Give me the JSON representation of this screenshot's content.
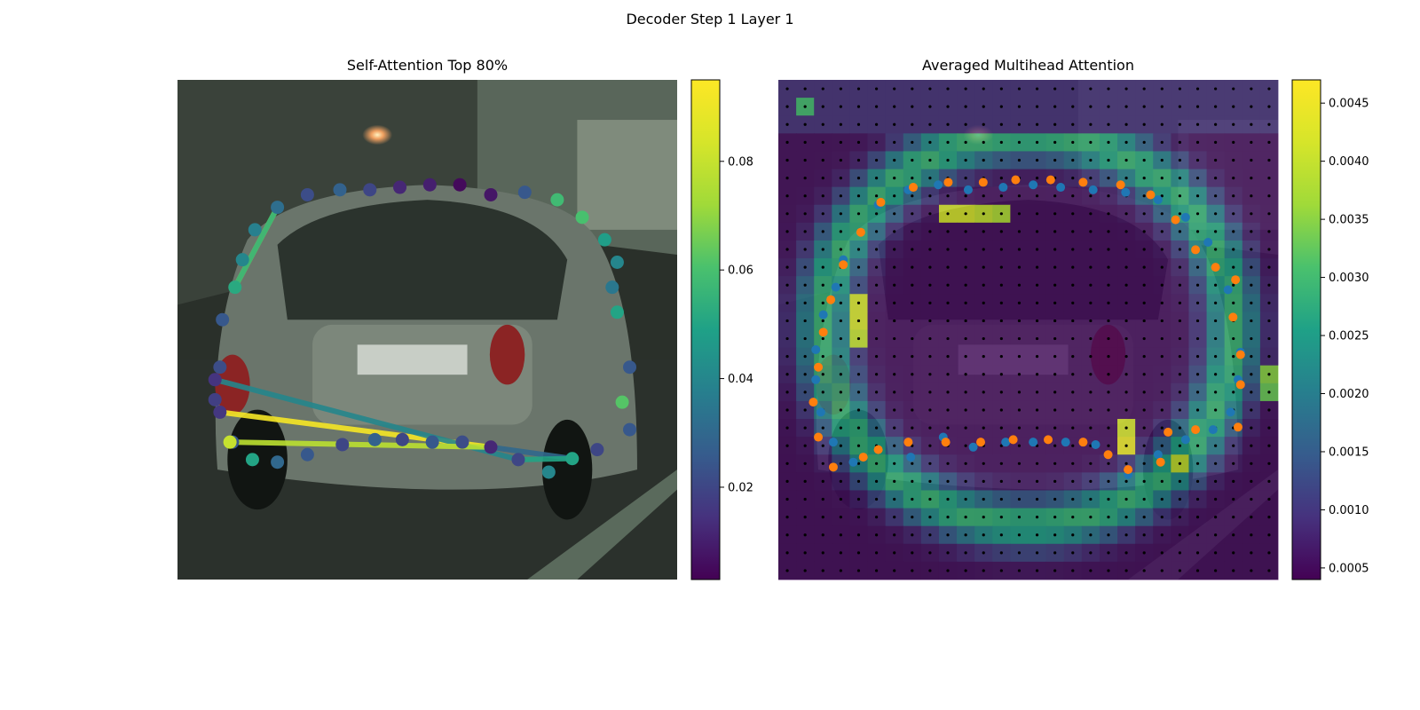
{
  "figure_title": "Decoder Step 1 Layer 1",
  "colors": {
    "blue_points": "#1f77b4",
    "orange_points": "#ff7f0e",
    "black_grid_points": "#000000"
  },
  "chart_data": [
    {
      "type": "scatter",
      "title": "Self-Attention Top 80%",
      "background": "street photo of a silver hatchback (rear view)",
      "colorbar": {
        "colormap": "viridis",
        "range": [
          0.003,
          0.095
        ],
        "ticks": [
          "0.02",
          "0.04",
          "0.06",
          "0.08"
        ],
        "tick_values": [
          0.02,
          0.04,
          0.06,
          0.08
        ]
      },
      "points": [
        {
          "x": 0.085,
          "y": 0.575,
          "v": 0.022
        },
        {
          "x": 0.075,
          "y": 0.64,
          "v": 0.018
        },
        {
          "x": 0.075,
          "y": 0.6,
          "v": 0.015
        },
        {
          "x": 0.085,
          "y": 0.665,
          "v": 0.016
        },
        {
          "x": 0.11,
          "y": 0.725,
          "v": 0.025
        },
        {
          "x": 0.15,
          "y": 0.76,
          "v": 0.05
        },
        {
          "x": 0.2,
          "y": 0.765,
          "v": 0.03
        },
        {
          "x": 0.26,
          "y": 0.75,
          "v": 0.025
        },
        {
          "x": 0.33,
          "y": 0.73,
          "v": 0.02
        },
        {
          "x": 0.395,
          "y": 0.72,
          "v": 0.028
        },
        {
          "x": 0.45,
          "y": 0.72,
          "v": 0.02
        },
        {
          "x": 0.51,
          "y": 0.725,
          "v": 0.025
        },
        {
          "x": 0.57,
          "y": 0.725,
          "v": 0.022
        },
        {
          "x": 0.627,
          "y": 0.735,
          "v": 0.012
        },
        {
          "x": 0.682,
          "y": 0.76,
          "v": 0.02
        },
        {
          "x": 0.743,
          "y": 0.785,
          "v": 0.04
        },
        {
          "x": 0.79,
          "y": 0.758,
          "v": 0.05
        },
        {
          "x": 0.84,
          "y": 0.74,
          "v": 0.02
        },
        {
          "x": 0.905,
          "y": 0.7,
          "v": 0.025
        },
        {
          "x": 0.89,
          "y": 0.645,
          "v": 0.062
        },
        {
          "x": 0.905,
          "y": 0.575,
          "v": 0.025
        },
        {
          "x": 0.88,
          "y": 0.465,
          "v": 0.05
        },
        {
          "x": 0.87,
          "y": 0.415,
          "v": 0.035
        },
        {
          "x": 0.88,
          "y": 0.365,
          "v": 0.04
        },
        {
          "x": 0.855,
          "y": 0.32,
          "v": 0.048
        },
        {
          "x": 0.81,
          "y": 0.275,
          "v": 0.06
        },
        {
          "x": 0.76,
          "y": 0.24,
          "v": 0.058
        },
        {
          "x": 0.695,
          "y": 0.225,
          "v": 0.025
        },
        {
          "x": 0.627,
          "y": 0.23,
          "v": 0.008
        },
        {
          "x": 0.565,
          "y": 0.21,
          "v": 0.005
        },
        {
          "x": 0.505,
          "y": 0.21,
          "v": 0.01
        },
        {
          "x": 0.445,
          "y": 0.215,
          "v": 0.012
        },
        {
          "x": 0.385,
          "y": 0.22,
          "v": 0.02
        },
        {
          "x": 0.325,
          "y": 0.22,
          "v": 0.028
        },
        {
          "x": 0.26,
          "y": 0.23,
          "v": 0.022
        },
        {
          "x": 0.2,
          "y": 0.255,
          "v": 0.032
        },
        {
          "x": 0.155,
          "y": 0.3,
          "v": 0.038
        },
        {
          "x": 0.13,
          "y": 0.36,
          "v": 0.04
        },
        {
          "x": 0.115,
          "y": 0.415,
          "v": 0.052
        },
        {
          "x": 0.09,
          "y": 0.48,
          "v": 0.025
        },
        {
          "x": 0.105,
          "y": 0.725,
          "v": 0.08
        }
      ],
      "lines": [
        {
          "from": [
            0.2,
            0.255
          ],
          "to": [
            0.115,
            0.415
          ],
          "v": 0.08
        },
        {
          "from": [
            0.2,
            0.255
          ],
          "to": [
            0.115,
            0.415
          ],
          "v": 0.055
        },
        {
          "from": [
            0.085,
            0.665
          ],
          "to": [
            0.627,
            0.735
          ],
          "v": 0.093
        },
        {
          "from": [
            0.075,
            0.6
          ],
          "to": [
            0.682,
            0.76
          ],
          "v": 0.04
        },
        {
          "from": [
            0.105,
            0.725
          ],
          "to": [
            0.627,
            0.735
          ],
          "v": 0.078
        },
        {
          "from": [
            0.627,
            0.735
          ],
          "to": [
            0.79,
            0.758
          ],
          "v": 0.03
        },
        {
          "from": [
            0.682,
            0.76
          ],
          "to": [
            0.79,
            0.758
          ],
          "v": 0.05
        }
      ]
    },
    {
      "type": "heatmap",
      "title": "Averaged Multihead Attention",
      "background": "same street photo, darkened",
      "colorbar": {
        "colormap": "viridis",
        "range": [
          0.0004,
          0.0047
        ],
        "ticks": [
          "0.0005",
          "0.0010",
          "0.0015",
          "0.0020",
          "0.0025",
          "0.0030",
          "0.0035",
          "0.0040",
          "0.0045"
        ],
        "tick_values": [
          0.0005,
          0.001,
          0.0015,
          0.002,
          0.0025,
          0.003,
          0.0035,
          0.004,
          0.0045
        ]
      },
      "grid": {
        "cols": 28,
        "rows": 28
      },
      "ring": {
        "cx": 0.5,
        "cy": 0.5,
        "rx": 0.41,
        "ry": 0.39
      },
      "hotspots": [
        {
          "c": 9,
          "r": 7,
          "v": 0.0042
        },
        {
          "c": 10,
          "r": 7,
          "v": 0.0042
        },
        {
          "c": 11,
          "r": 7,
          "v": 0.004
        },
        {
          "c": 12,
          "r": 7,
          "v": 0.0038
        },
        {
          "c": 4,
          "r": 12,
          "v": 0.0042
        },
        {
          "c": 4,
          "r": 13,
          "v": 0.0042
        },
        {
          "c": 4,
          "r": 14,
          "v": 0.004
        },
        {
          "c": 19,
          "r": 20,
          "v": 0.0045
        },
        {
          "c": 19,
          "r": 19,
          "v": 0.0042
        },
        {
          "c": 22,
          "r": 21,
          "v": 0.004
        },
        {
          "c": 1,
          "r": 1,
          "v": 0.003
        },
        {
          "c": 27,
          "r": 16,
          "v": 0.0035
        },
        {
          "c": 27,
          "r": 17,
          "v": 0.0033
        }
      ],
      "blue_points": [
        {
          "x": 0.2,
          "y": 0.25
        },
        {
          "x": 0.26,
          "y": 0.22
        },
        {
          "x": 0.32,
          "y": 0.21
        },
        {
          "x": 0.38,
          "y": 0.22
        },
        {
          "x": 0.45,
          "y": 0.215
        },
        {
          "x": 0.51,
          "y": 0.21
        },
        {
          "x": 0.565,
          "y": 0.215
        },
        {
          "x": 0.63,
          "y": 0.22
        },
        {
          "x": 0.695,
          "y": 0.225
        },
        {
          "x": 0.76,
          "y": 0.24
        },
        {
          "x": 0.815,
          "y": 0.275
        },
        {
          "x": 0.86,
          "y": 0.325
        },
        {
          "x": 0.9,
          "y": 0.42
        },
        {
          "x": 0.925,
          "y": 0.545
        },
        {
          "x": 0.92,
          "y": 0.6
        },
        {
          "x": 0.905,
          "y": 0.665
        },
        {
          "x": 0.87,
          "y": 0.7
        },
        {
          "x": 0.815,
          "y": 0.72
        },
        {
          "x": 0.76,
          "y": 0.75
        },
        {
          "x": 0.7,
          "y": 0.79
        },
        {
          "x": 0.635,
          "y": 0.73
        },
        {
          "x": 0.575,
          "y": 0.725
        },
        {
          "x": 0.51,
          "y": 0.725
        },
        {
          "x": 0.455,
          "y": 0.725
        },
        {
          "x": 0.39,
          "y": 0.735
        },
        {
          "x": 0.33,
          "y": 0.715
        },
        {
          "x": 0.265,
          "y": 0.755
        },
        {
          "x": 0.15,
          "y": 0.765
        },
        {
          "x": 0.11,
          "y": 0.725
        },
        {
          "x": 0.085,
          "y": 0.665
        },
        {
          "x": 0.075,
          "y": 0.6
        },
        {
          "x": 0.075,
          "y": 0.54
        },
        {
          "x": 0.09,
          "y": 0.47
        },
        {
          "x": 0.115,
          "y": 0.415
        },
        {
          "x": 0.13,
          "y": 0.36
        }
      ],
      "orange_points": [
        {
          "x": 0.205,
          "y": 0.245
        },
        {
          "x": 0.27,
          "y": 0.215
        },
        {
          "x": 0.34,
          "y": 0.205
        },
        {
          "x": 0.41,
          "y": 0.205
        },
        {
          "x": 0.475,
          "y": 0.2
        },
        {
          "x": 0.545,
          "y": 0.2
        },
        {
          "x": 0.61,
          "y": 0.205
        },
        {
          "x": 0.685,
          "y": 0.21
        },
        {
          "x": 0.745,
          "y": 0.23
        },
        {
          "x": 0.795,
          "y": 0.28
        },
        {
          "x": 0.835,
          "y": 0.34
        },
        {
          "x": 0.875,
          "y": 0.375
        },
        {
          "x": 0.915,
          "y": 0.4
        },
        {
          "x": 0.91,
          "y": 0.475
        },
        {
          "x": 0.925,
          "y": 0.55
        },
        {
          "x": 0.925,
          "y": 0.61
        },
        {
          "x": 0.92,
          "y": 0.695
        },
        {
          "x": 0.835,
          "y": 0.7
        },
        {
          "x": 0.78,
          "y": 0.705
        },
        {
          "x": 0.765,
          "y": 0.765
        },
        {
          "x": 0.7,
          "y": 0.78
        },
        {
          "x": 0.66,
          "y": 0.75
        },
        {
          "x": 0.61,
          "y": 0.725
        },
        {
          "x": 0.54,
          "y": 0.72
        },
        {
          "x": 0.47,
          "y": 0.72
        },
        {
          "x": 0.405,
          "y": 0.725
        },
        {
          "x": 0.335,
          "y": 0.725
        },
        {
          "x": 0.26,
          "y": 0.725
        },
        {
          "x": 0.2,
          "y": 0.74
        },
        {
          "x": 0.17,
          "y": 0.755
        },
        {
          "x": 0.11,
          "y": 0.775
        },
        {
          "x": 0.08,
          "y": 0.715
        },
        {
          "x": 0.07,
          "y": 0.645
        },
        {
          "x": 0.08,
          "y": 0.575
        },
        {
          "x": 0.09,
          "y": 0.505
        },
        {
          "x": 0.105,
          "y": 0.44
        },
        {
          "x": 0.13,
          "y": 0.37
        },
        {
          "x": 0.165,
          "y": 0.305
        }
      ]
    }
  ]
}
